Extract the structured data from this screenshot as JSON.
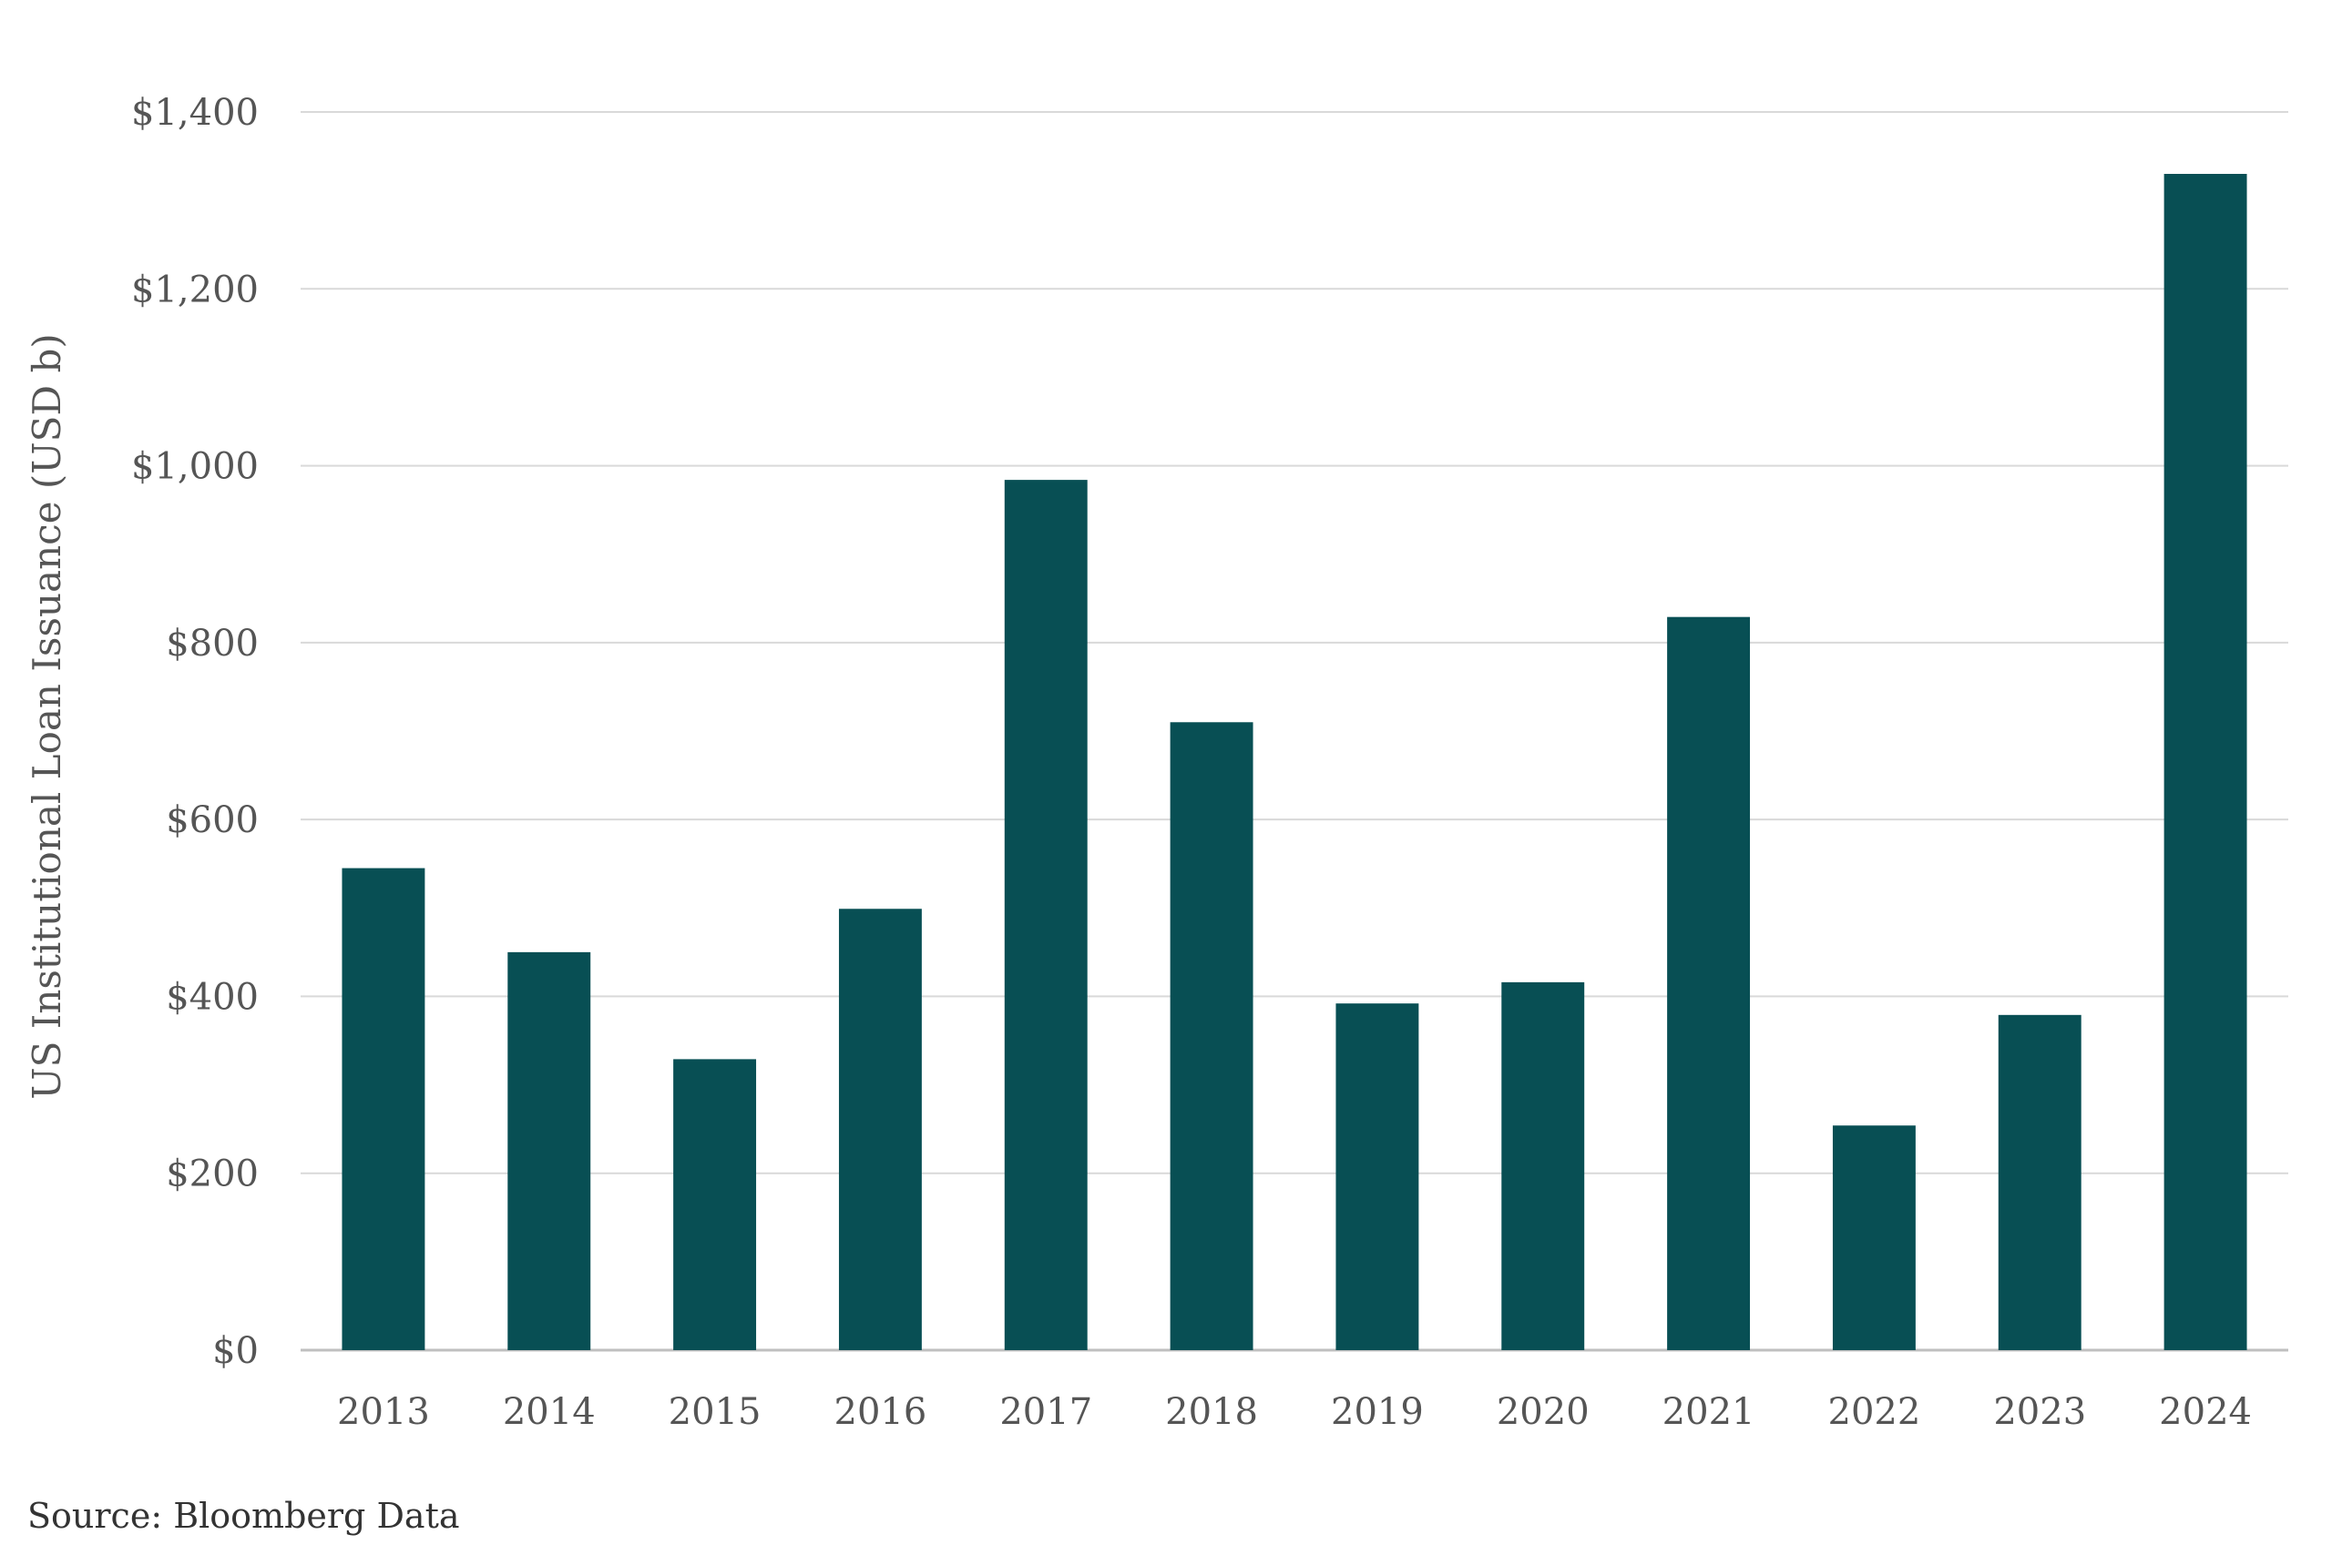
{
  "chart_data": {
    "type": "bar",
    "categories": [
      "2013",
      "2014",
      "2015",
      "2016",
      "2017",
      "2018",
      "2019",
      "2020",
      "2021",
      "2022",
      "2023",
      "2024"
    ],
    "values": [
      545,
      450,
      329,
      499,
      984,
      710,
      392,
      416,
      829,
      254,
      379,
      1330
    ],
    "ylabel": "US Institutional Loan Issuance (USD b)",
    "xlabel": "",
    "ylim": [
      0,
      1400
    ],
    "yticks": [
      0,
      200,
      400,
      600,
      800,
      1000,
      1200,
      1400
    ],
    "ytick_labels": [
      "$0",
      "$200",
      "$400",
      "$600",
      "$800",
      "$1,000",
      "$1,200",
      "$1,400"
    ],
    "grid": true,
    "legend": "none",
    "bar_color": "#084f54"
  },
  "source": "Source: Bloomberg Data"
}
